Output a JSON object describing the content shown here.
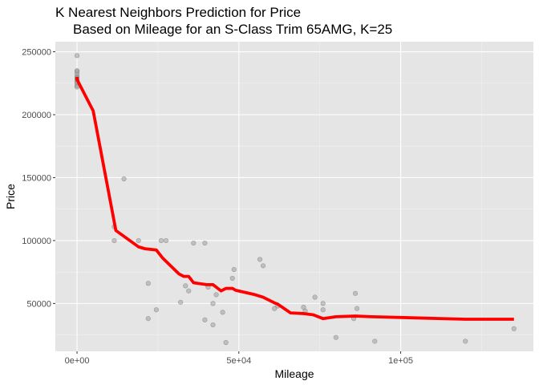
{
  "chart_data": {
    "type": "scatter",
    "title_line1": "K Nearest Neighbors Prediction for Price",
    "title_line2": "Based on Mileage for an S-Class Trim 65AMG, K=25",
    "xlabel": "Mileage",
    "ylabel": "Price",
    "xlim": [
      -6700,
      141000
    ],
    "ylim": [
      12000,
      258000
    ],
    "x_ticks": [
      {
        "value": 0,
        "label": "0e+00"
      },
      {
        "value": 50000,
        "label": "5e+04"
      },
      {
        "value": 100000,
        "label": "1e+05"
      }
    ],
    "y_ticks": [
      {
        "value": 50000,
        "label": "50000"
      },
      {
        "value": 100000,
        "label": "100000"
      },
      {
        "value": 150000,
        "label": "150000"
      },
      {
        "value": 200000,
        "label": "200000"
      },
      {
        "value": 250000,
        "label": "250000"
      }
    ],
    "grid": true,
    "legend": "none",
    "colors": {
      "panel": "#e5e5e5",
      "grid_major": "#ffffff",
      "points": "#9e9e9e",
      "line": "#ff0000"
    },
    "series": [
      {
        "type": "scatter",
        "points": [
          [
            0,
            247000
          ],
          [
            0,
            235000
          ],
          [
            0,
            234000
          ],
          [
            0,
            232000
          ],
          [
            0,
            230000
          ],
          [
            0,
            229000
          ],
          [
            0,
            228000
          ],
          [
            0,
            227000
          ],
          [
            0,
            226000
          ],
          [
            0,
            225000
          ],
          [
            0,
            223000
          ],
          [
            0,
            222000
          ],
          [
            11500,
            111000
          ],
          [
            11500,
            100000
          ],
          [
            14500,
            149000
          ],
          [
            19000,
            100000
          ],
          [
            22000,
            66000
          ],
          [
            22000,
            38000
          ],
          [
            24500,
            45000
          ],
          [
            26000,
            100000
          ],
          [
            27500,
            100000
          ],
          [
            32000,
            51000
          ],
          [
            33500,
            64000
          ],
          [
            34500,
            60000
          ],
          [
            36000,
            98000
          ],
          [
            39500,
            98000
          ],
          [
            39500,
            37000
          ],
          [
            40500,
            63000
          ],
          [
            42000,
            33000
          ],
          [
            42000,
            50000
          ],
          [
            43000,
            57000
          ],
          [
            45000,
            43000
          ],
          [
            46000,
            19000
          ],
          [
            48000,
            70000
          ],
          [
            48500,
            77000
          ],
          [
            56500,
            85000
          ],
          [
            57500,
            80000
          ],
          [
            61000,
            46000
          ],
          [
            62000,
            48000
          ],
          [
            70000,
            47000
          ],
          [
            70500,
            44000
          ],
          [
            73500,
            55000
          ],
          [
            76000,
            50000
          ],
          [
            76000,
            45000
          ],
          [
            80000,
            23000
          ],
          [
            85500,
            38000
          ],
          [
            86000,
            58000
          ],
          [
            86500,
            46000
          ],
          [
            92000,
            20000
          ],
          [
            120000,
            20000
          ],
          [
            135000,
            30000
          ]
        ]
      },
      {
        "type": "line",
        "points": [
          [
            0,
            230000
          ],
          [
            0,
            228000
          ],
          [
            5000,
            203000
          ],
          [
            12000,
            108000
          ],
          [
            19000,
            95000
          ],
          [
            21000,
            93500
          ],
          [
            24500,
            92500
          ],
          [
            26500,
            86000
          ],
          [
            31500,
            73500
          ],
          [
            33000,
            71500
          ],
          [
            34500,
            71500
          ],
          [
            36000,
            66500
          ],
          [
            40000,
            65000
          ],
          [
            42000,
            65000
          ],
          [
            44500,
            60000
          ],
          [
            46000,
            62000
          ],
          [
            48000,
            62000
          ],
          [
            49000,
            60500
          ],
          [
            55000,
            57000
          ],
          [
            57500,
            55000
          ],
          [
            61000,
            50500
          ],
          [
            62000,
            49500
          ],
          [
            66000,
            42500
          ],
          [
            70000,
            42000
          ],
          [
            73000,
            41000
          ],
          [
            76000,
            38000
          ],
          [
            80000,
            39500
          ],
          [
            86000,
            40000
          ],
          [
            91000,
            39500
          ],
          [
            120000,
            37500
          ],
          [
            135000,
            37500
          ]
        ]
      }
    ]
  }
}
